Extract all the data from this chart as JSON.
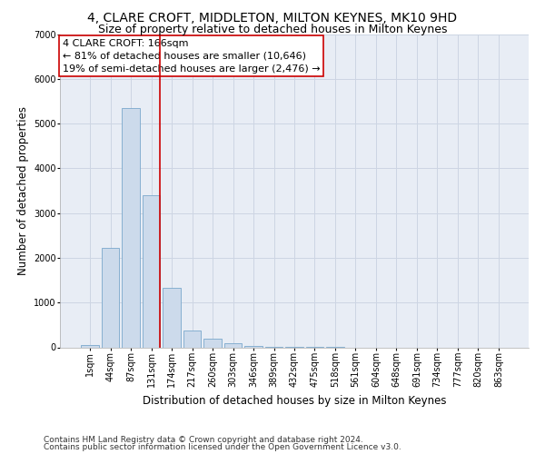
{
  "title": "4, CLARE CROFT, MIDDLETON, MILTON KEYNES, MK10 9HD",
  "subtitle": "Size of property relative to detached houses in Milton Keynes",
  "xlabel": "Distribution of detached houses by size in Milton Keynes",
  "ylabel": "Number of detached properties",
  "footnote1": "Contains HM Land Registry data © Crown copyright and database right 2024.",
  "footnote2": "Contains public sector information licensed under the Open Government Licence v3.0.",
  "annotation_title": "4 CLARE CROFT: 166sqm",
  "annotation_line1": "← 81% of detached houses are smaller (10,646)",
  "annotation_line2": "19% of semi-detached houses are larger (2,476) →",
  "bar_color": "#ccdaeb",
  "bar_edge_color": "#7aa8cc",
  "marker_line_color": "#cc0000",
  "categories": [
    "1sqm",
    "44sqm",
    "87sqm",
    "131sqm",
    "174sqm",
    "217sqm",
    "260sqm",
    "303sqm",
    "346sqm",
    "389sqm",
    "432sqm",
    "475sqm",
    "518sqm",
    "561sqm",
    "604sqm",
    "648sqm",
    "691sqm",
    "734sqm",
    "777sqm",
    "820sqm",
    "863sqm"
  ],
  "values": [
    55,
    2230,
    5350,
    3400,
    1320,
    380,
    195,
    88,
    28,
    10,
    4,
    2,
    1,
    0,
    0,
    0,
    0,
    0,
    0,
    0,
    0
  ],
  "marker_bin_index": 3,
  "ylim": [
    0,
    7000
  ],
  "yticks": [
    0,
    1000,
    2000,
    3000,
    4000,
    5000,
    6000,
    7000
  ],
  "grid_color": "#cdd5e3",
  "background_color": "#e8edf5",
  "title_fontsize": 10,
  "subtitle_fontsize": 9,
  "axis_label_fontsize": 8.5,
  "tick_fontsize": 7,
  "annotation_fontsize": 8,
  "footnote_fontsize": 6.5
}
